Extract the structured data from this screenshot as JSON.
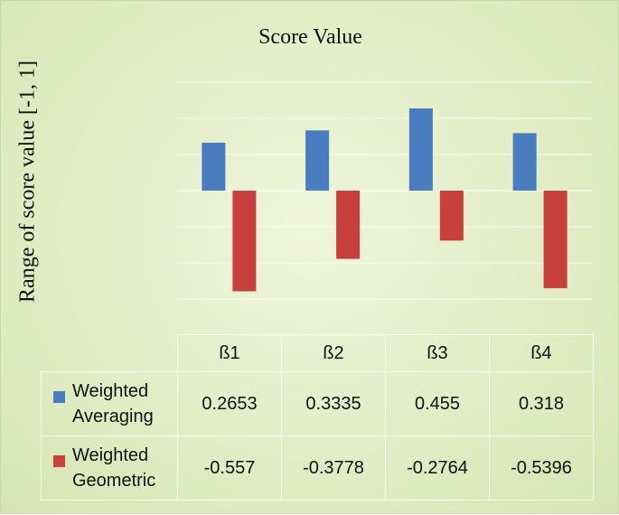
{
  "chart_data": {
    "type": "bar",
    "title": "Score Value",
    "ylabel": "Range of score value [-1, 1]",
    "categories": [
      "ß1",
      "ß2",
      "ß3",
      "ß4"
    ],
    "series": [
      {
        "name": "Weighted Averaging",
        "values": [
          0.2653,
          0.3335,
          0.455,
          0.318
        ],
        "labels": [
          "0.2653",
          "0.3335",
          "0.455",
          "0.318"
        ],
        "color": "#4a7dc0"
      },
      {
        "name": "Weighted Geometric",
        "values": [
          -0.557,
          -0.3778,
          -0.2764,
          -0.5396
        ],
        "labels": [
          "-0.557",
          "-0.3778",
          "-0.2764",
          "-0.5396"
        ],
        "color": "#c8403e"
      }
    ],
    "ylim": [
      -0.6,
      0.6
    ],
    "grid": true,
    "legend": "data-table"
  }
}
